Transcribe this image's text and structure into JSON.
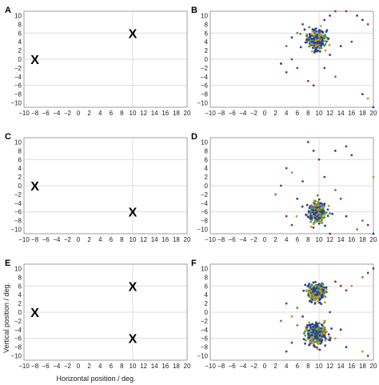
{
  "panel_letters": [
    "A",
    "B",
    "C",
    "D",
    "E",
    "F"
  ],
  "x_ticks": [
    "−10",
    "−8",
    "−6",
    "−4",
    "−2",
    "0",
    "2",
    "4",
    "6",
    "8",
    "10",
    "12",
    "14",
    "16",
    "18",
    "20"
  ],
  "y_ticks": [
    "10",
    "8",
    "6",
    "4",
    "2",
    "0",
    "−2",
    "−4",
    "−6",
    "−8",
    "−10"
  ],
  "xlabel": "Horizontal position / deg.",
  "ylabel": "Vertical position / deg.",
  "target_marker": "X",
  "colors": {
    "blue": "#2a3f9e",
    "green": "#4d9b3a",
    "orange": "#c9962a",
    "purple": "#8a2f6e",
    "red": "#b03030",
    "grid": "#d0d0d0"
  },
  "chart_data": [
    {
      "panel": "A",
      "type": "scatter",
      "xlim": [
        -10,
        20
      ],
      "ylim": [
        -11,
        11
      ],
      "targets": [
        {
          "x": -8,
          "y": 0
        },
        {
          "x": 10,
          "y": 6
        }
      ]
    },
    {
      "panel": "B",
      "type": "scatter",
      "xlim": [
        -10,
        20
      ],
      "ylim": [
        -11,
        11
      ],
      "clusters": [
        {
          "cx": 9.5,
          "cy": 4.5,
          "spread": 1.4
        }
      ],
      "outliers": [
        [
          13,
          11
        ],
        [
          15,
          11
        ],
        [
          17,
          10
        ],
        [
          18,
          9
        ],
        [
          19,
          8
        ],
        [
          4,
          3
        ],
        [
          3,
          -1
        ],
        [
          5,
          0
        ],
        [
          6,
          -2
        ],
        [
          4,
          -3
        ],
        [
          8,
          -5
        ],
        [
          9,
          -6
        ],
        [
          11,
          -2
        ],
        [
          12,
          1
        ],
        [
          14,
          3
        ],
        [
          16,
          4
        ],
        [
          18,
          -8
        ],
        [
          19,
          -9
        ],
        [
          20,
          -11
        ],
        [
          13,
          -4
        ],
        [
          6,
          6
        ],
        [
          5,
          5
        ],
        [
          7,
          8
        ],
        [
          11,
          9
        ],
        [
          12,
          10
        ]
      ]
    },
    {
      "panel": "C",
      "type": "scatter",
      "xlim": [
        -10,
        20
      ],
      "ylim": [
        -11,
        11
      ],
      "targets": [
        {
          "x": -8,
          "y": 0
        },
        {
          "x": 10,
          "y": -6
        }
      ]
    },
    {
      "panel": "D",
      "type": "scatter",
      "xlim": [
        -10,
        20
      ],
      "ylim": [
        -11,
        11
      ],
      "clusters": [
        {
          "cx": 9.5,
          "cy": -6,
          "spread": 1.5
        }
      ],
      "outliers": [
        [
          8,
          10
        ],
        [
          9,
          8
        ],
        [
          10,
          6
        ],
        [
          13,
          8
        ],
        [
          15,
          9
        ],
        [
          16,
          7
        ],
        [
          20,
          2
        ],
        [
          4,
          4
        ],
        [
          5,
          3
        ],
        [
          3,
          0
        ],
        [
          2,
          -2
        ],
        [
          4,
          -7
        ],
        [
          5,
          -9
        ],
        [
          6,
          -3
        ],
        [
          13,
          -1
        ],
        [
          14,
          -3
        ],
        [
          15,
          -7
        ],
        [
          17,
          -10
        ],
        [
          18,
          -8
        ],
        [
          19,
          -9
        ],
        [
          20,
          -11
        ],
        [
          12,
          -11
        ],
        [
          7,
          1
        ],
        [
          11,
          2
        ]
      ]
    },
    {
      "panel": "E",
      "type": "scatter",
      "xlim": [
        -10,
        20
      ],
      "ylim": [
        -11,
        11
      ],
      "targets": [
        {
          "x": -8,
          "y": 0
        },
        {
          "x": 10,
          "y": 6
        },
        {
          "x": 10,
          "y": -6
        }
      ]
    },
    {
      "panel": "F",
      "type": "scatter",
      "xlim": [
        -10,
        20
      ],
      "ylim": [
        -11,
        11
      ],
      "clusters": [
        {
          "cx": 9.5,
          "cy": 4.5,
          "spread": 1.3
        },
        {
          "cx": 9.5,
          "cy": -5,
          "spread": 1.6
        }
      ],
      "outliers": [
        [
          13,
          7
        ],
        [
          14,
          6
        ],
        [
          15,
          5
        ],
        [
          16,
          6
        ],
        [
          18,
          8
        ],
        [
          19,
          9
        ],
        [
          20,
          10
        ],
        [
          4,
          2
        ],
        [
          5,
          -1
        ],
        [
          6,
          -3
        ],
        [
          3,
          -2
        ],
        [
          5,
          -7
        ],
        [
          4,
          -9
        ],
        [
          13,
          -6
        ],
        [
          14,
          -4
        ],
        [
          15,
          -8
        ],
        [
          18,
          -9
        ],
        [
          19,
          -10
        ],
        [
          12,
          0
        ],
        [
          6,
          1
        ],
        [
          7,
          -1
        ],
        [
          8,
          -3
        ],
        [
          11,
          -2
        ]
      ]
    }
  ]
}
